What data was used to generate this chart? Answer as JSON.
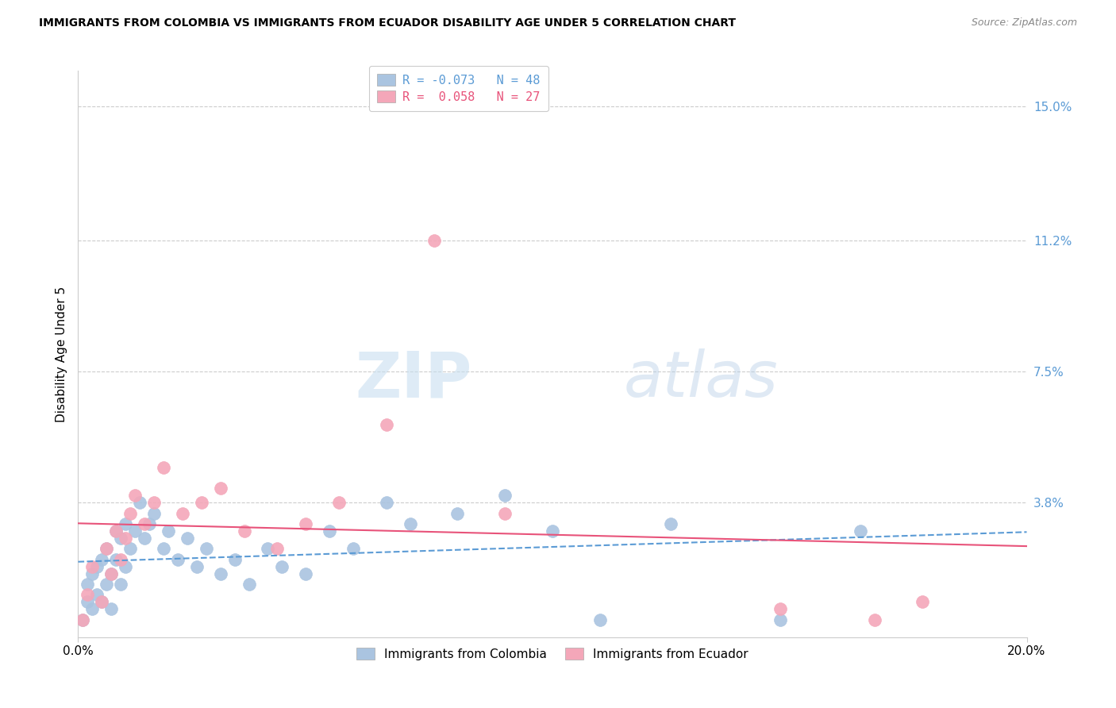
{
  "title": "IMMIGRANTS FROM COLOMBIA VS IMMIGRANTS FROM ECUADOR DISABILITY AGE UNDER 5 CORRELATION CHART",
  "source": "Source: ZipAtlas.com",
  "ylabel": "Disability Age Under 5",
  "xlabel": "",
  "xlim": [
    0.0,
    0.2
  ],
  "ylim": [
    0.0,
    0.16
  ],
  "yticks": [
    0.038,
    0.075,
    0.112,
    0.15
  ],
  "ytick_labels": [
    "3.8%",
    "7.5%",
    "11.2%",
    "15.0%"
  ],
  "xticks": [
    0.0,
    0.2
  ],
  "xtick_labels": [
    "0.0%",
    "20.0%"
  ],
  "grid_color": "#cccccc",
  "background_color": "#ffffff",
  "watermark_zip": "ZIP",
  "watermark_atlas": "atlas",
  "series": [
    {
      "name": "Immigrants from Colombia",
      "R": -0.073,
      "N": 48,
      "color": "#aac4e0",
      "line_color": "#5b9bd5",
      "line_style": "--",
      "x": [
        0.001,
        0.002,
        0.002,
        0.003,
        0.003,
        0.004,
        0.004,
        0.005,
        0.005,
        0.006,
        0.006,
        0.007,
        0.007,
        0.008,
        0.008,
        0.009,
        0.009,
        0.01,
        0.01,
        0.011,
        0.012,
        0.013,
        0.014,
        0.015,
        0.016,
        0.018,
        0.019,
        0.021,
        0.023,
        0.025,
        0.027,
        0.03,
        0.033,
        0.036,
        0.04,
        0.043,
        0.048,
        0.053,
        0.058,
        0.065,
        0.07,
        0.08,
        0.09,
        0.1,
        0.11,
        0.125,
        0.148,
        0.165
      ],
      "y": [
        0.005,
        0.01,
        0.015,
        0.008,
        0.018,
        0.012,
        0.02,
        0.01,
        0.022,
        0.015,
        0.025,
        0.018,
        0.008,
        0.022,
        0.03,
        0.015,
        0.028,
        0.02,
        0.032,
        0.025,
        0.03,
        0.038,
        0.028,
        0.032,
        0.035,
        0.025,
        0.03,
        0.022,
        0.028,
        0.02,
        0.025,
        0.018,
        0.022,
        0.015,
        0.025,
        0.02,
        0.018,
        0.03,
        0.025,
        0.038,
        0.032,
        0.035,
        0.04,
        0.03,
        0.005,
        0.032,
        0.005,
        0.03
      ]
    },
    {
      "name": "Immigrants from Ecuador",
      "R": 0.058,
      "N": 27,
      "color": "#f4a7b9",
      "line_color": "#e8537a",
      "line_style": "-",
      "x": [
        0.001,
        0.002,
        0.003,
        0.005,
        0.006,
        0.007,
        0.008,
        0.009,
        0.01,
        0.011,
        0.012,
        0.014,
        0.016,
        0.018,
        0.022,
        0.026,
        0.03,
        0.035,
        0.042,
        0.048,
        0.055,
        0.065,
        0.075,
        0.09,
        0.148,
        0.168,
        0.178
      ],
      "y": [
        0.005,
        0.012,
        0.02,
        0.01,
        0.025,
        0.018,
        0.03,
        0.022,
        0.028,
        0.035,
        0.04,
        0.032,
        0.038,
        0.048,
        0.035,
        0.038,
        0.042,
        0.03,
        0.025,
        0.032,
        0.038,
        0.06,
        0.112,
        0.035,
        0.008,
        0.005,
        0.01
      ]
    }
  ]
}
